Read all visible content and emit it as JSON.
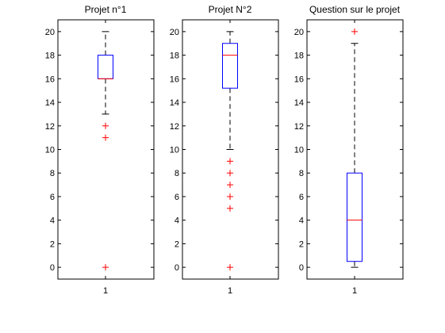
{
  "chart_data": [
    {
      "type": "boxplot",
      "title": "Projet n°1",
      "categories": [
        "1"
      ],
      "ylim": [
        -1,
        21
      ],
      "yticks": [
        0,
        2,
        4,
        6,
        8,
        10,
        12,
        14,
        16,
        18,
        20
      ],
      "box": {
        "whisker_low": 13,
        "q1": 16,
        "median": 16,
        "q3": 18,
        "whisker_high": 20
      },
      "outliers": [
        12,
        11,
        0
      ]
    },
    {
      "type": "boxplot",
      "title": "Projet N°2",
      "categories": [
        "1"
      ],
      "ylim": [
        -1,
        21
      ],
      "yticks": [
        0,
        2,
        4,
        6,
        8,
        10,
        12,
        14,
        16,
        18,
        20
      ],
      "box": {
        "whisker_low": 10,
        "q1": 15.2,
        "median": 18,
        "q3": 19,
        "whisker_high": 20
      },
      "outliers": [
        9,
        8,
        7,
        6,
        5,
        0
      ]
    },
    {
      "type": "boxplot",
      "title": "Question sur le projet",
      "categories": [
        "1"
      ],
      "ylim": [
        -1,
        21
      ],
      "yticks": [
        0,
        2,
        4,
        6,
        8,
        10,
        12,
        14,
        16,
        18,
        20
      ],
      "box": {
        "whisker_low": 0,
        "q1": 0.5,
        "median": 4,
        "q3": 8,
        "whisker_high": 19
      },
      "outliers": [
        20
      ]
    }
  ],
  "colors": {
    "box": "#0000ff",
    "median": "#ff0000",
    "outlier": "#ff0000",
    "whisker": "#000000",
    "axes": "#000000"
  }
}
